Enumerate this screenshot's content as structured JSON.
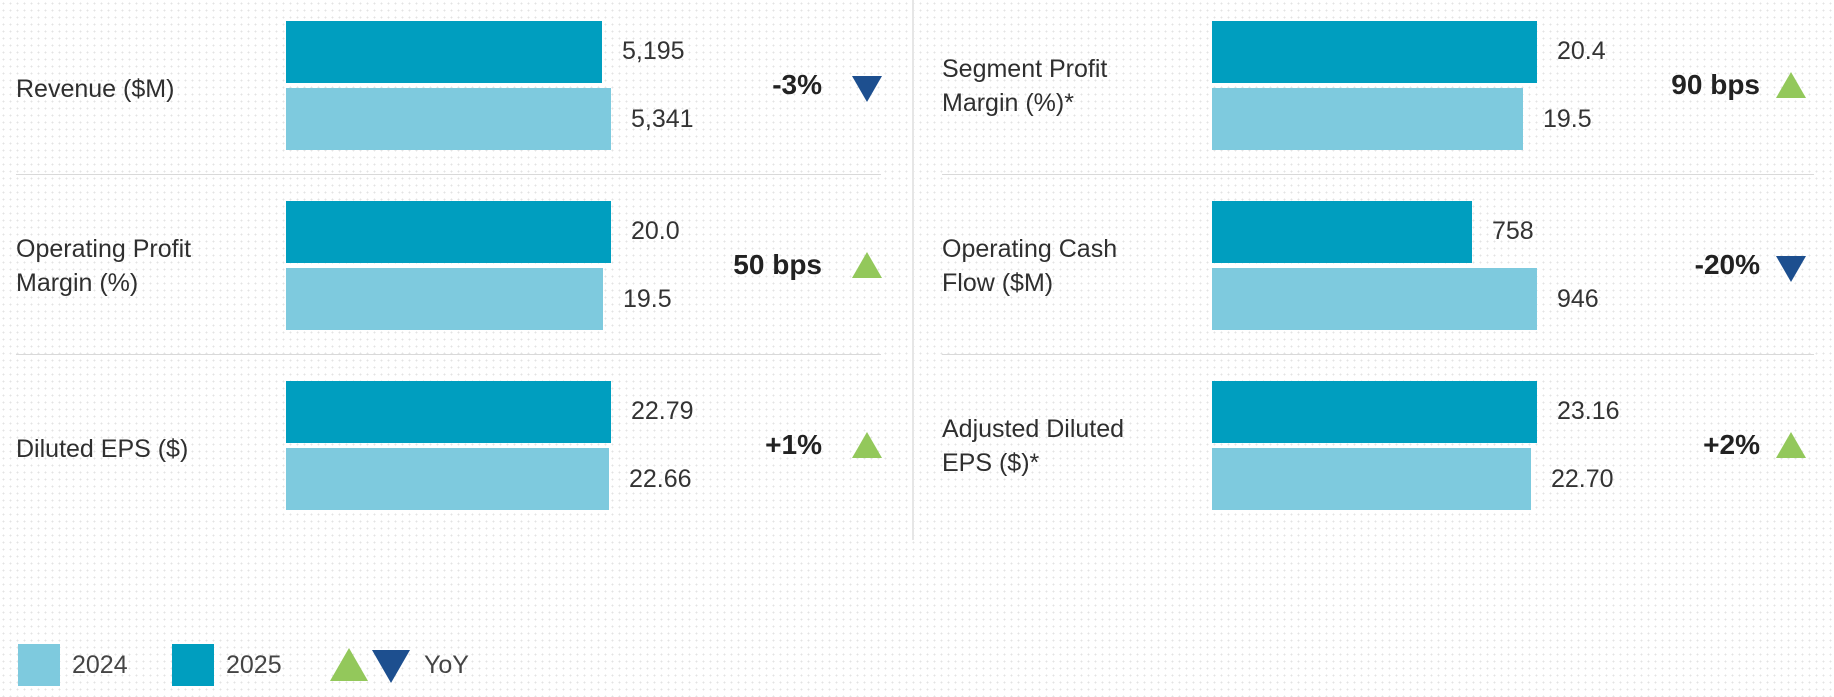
{
  "chart_data": {
    "type": "bar",
    "colors": {
      "2025": "#009ebf",
      "2024": "#7ecade",
      "yoy_up": "#93c85b",
      "yoy_down": "#1d4f8f"
    },
    "legend": {
      "entries": [
        "2024",
        "2025"
      ],
      "yoy_label": "YoY",
      "placement": "bottom-left"
    },
    "panels": [
      {
        "metrics": [
          {
            "label": "Revenue ($M)",
            "v2025": 5195,
            "v2024": 5341,
            "v2025_label": "5,195",
            "v2024_label": "5,341",
            "change": "-3%",
            "direction": "down"
          },
          {
            "label": "Operating Profit\nMargin (%)",
            "v2025": 20.0,
            "v2024": 19.5,
            "v2025_label": "20.0",
            "v2024_label": "19.5",
            "change": "50 bps",
            "direction": "up"
          },
          {
            "label": "Diluted EPS ($)",
            "v2025": 22.79,
            "v2024": 22.66,
            "v2025_label": "22.79",
            "v2024_label": "22.66",
            "change": "+1%",
            "direction": "up"
          }
        ]
      },
      {
        "metrics": [
          {
            "label": "Segment Profit\nMargin (%)*",
            "v2025": 20.4,
            "v2024": 19.5,
            "v2025_label": "20.4",
            "v2024_label": "19.5",
            "change": "90 bps",
            "direction": "up"
          },
          {
            "label": "Operating Cash\nFlow ($M)",
            "v2025": 758,
            "v2024": 946,
            "v2025_label": "758",
            "v2024_label": "946",
            "change": "-20%",
            "direction": "down"
          },
          {
            "label": "Adjusted Diluted\nEPS ($)*",
            "v2025": 23.16,
            "v2024": 22.7,
            "v2025_label": "23.16",
            "v2024_label": "22.70",
            "change": "+2%",
            "direction": "up"
          }
        ]
      }
    ]
  }
}
